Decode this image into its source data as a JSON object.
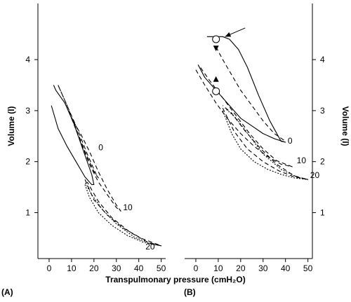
{
  "chart_data": [
    {
      "type": "line",
      "panel_label": "(A)",
      "xlabel": "Transpulmonary pressure (cmH₂O)",
      "ylabel": "Volume (l)",
      "xlim": [
        -5,
        52
      ],
      "ylim": [
        5.1,
        0.1
      ],
      "x_ticks": [
        "0",
        "10",
        "20",
        "30",
        "40",
        "50"
      ],
      "y_ticks": [
        "1",
        "2",
        "3",
        "4"
      ],
      "y_axis_side": "left",
      "series": [
        {
          "name": "0",
          "style": "solid",
          "label_at": [
            22,
            2.22
          ],
          "x": [
            1,
            4,
            8,
            12,
            16,
            19,
            20,
            19,
            15,
            11,
            7,
            3,
            2
          ],
          "y": [
            3.1,
            2.65,
            2.3,
            2.0,
            1.7,
            1.55,
            1.55,
            1.75,
            2.25,
            2.75,
            3.15,
            3.4,
            3.5
          ]
        },
        {
          "name": "0",
          "style": "dashed",
          "x": [
            4,
            8,
            12,
            16,
            20,
            22,
            21,
            17,
            13,
            8,
            4
          ],
          "y": [
            3.5,
            3.1,
            2.65,
            2.2,
            1.8,
            1.68,
            1.75,
            2.15,
            2.6,
            3.1,
            3.5
          ]
        },
        {
          "name": "10",
          "style": "dashed",
          "label_at": [
            33,
            1.05
          ],
          "x": [
            10,
            14,
            18,
            22,
            26,
            30,
            32,
            30,
            26,
            22,
            18,
            14,
            10
          ],
          "y": [
            2.85,
            2.4,
            1.95,
            1.6,
            1.35,
            1.1,
            1.03,
            1.15,
            1.45,
            1.8,
            2.2,
            2.55,
            2.85
          ]
        },
        {
          "name": "20",
          "style": "dotted",
          "label_at": [
            43,
            0.28
          ],
          "x": [
            16,
            18,
            22,
            28,
            35,
            42,
            50,
            46,
            38,
            30,
            24,
            19,
            16
          ],
          "y": [
            1.55,
            1.3,
            1.0,
            0.75,
            0.55,
            0.42,
            0.35,
            0.38,
            0.52,
            0.78,
            1.05,
            1.35,
            1.6
          ]
        },
        {
          "name": "20",
          "style": "dashed",
          "x": [
            16,
            20,
            26,
            33,
            41,
            50,
            44,
            36,
            28,
            22,
            17
          ],
          "y": [
            1.65,
            1.25,
            0.95,
            0.7,
            0.5,
            0.35,
            0.42,
            0.62,
            0.9,
            1.22,
            1.6
          ]
        }
      ]
    },
    {
      "type": "line",
      "panel_label": "(B)",
      "xlabel": "Transpulmonary pressure (cmH₂O)",
      "ylabel": "Volume (l)",
      "xlim": [
        -5,
        52
      ],
      "ylim": [
        5.1,
        0.1
      ],
      "x_ticks": [
        "0",
        "10",
        "20",
        "30",
        "40",
        "50"
      ],
      "y_ticks": [
        "1",
        "2",
        "3",
        "4"
      ],
      "y_axis_side": "right",
      "series": [
        {
          "name": "0",
          "style": "solid",
          "label_at": [
            41,
            2.35
          ],
          "x": [
            1,
            4,
            8,
            12,
            16,
            20,
            25,
            30,
            35,
            40,
            38,
            33,
            28,
            23,
            19,
            15,
            12,
            9,
            7,
            5
          ],
          "y": [
            3.9,
            3.65,
            3.45,
            3.25,
            3.05,
            2.85,
            2.7,
            2.55,
            2.45,
            2.38,
            2.4,
            2.8,
            3.3,
            3.85,
            4.2,
            4.4,
            4.45,
            4.45,
            4.45,
            4.45
          ]
        },
        {
          "name": "0",
          "style": "dashed",
          "x": [
            9,
            12,
            16,
            20,
            25,
            30,
            35,
            40
          ],
          "y": [
            4.25,
            4.0,
            3.7,
            3.4,
            3.1,
            2.8,
            2.55,
            2.4
          ]
        },
        {
          "name": "10",
          "style": "dashed",
          "label_at": [
            45,
            1.97
          ],
          "x": [
            0,
            4,
            9,
            14,
            20,
            26,
            32,
            38,
            43,
            36,
            30,
            24,
            18,
            12,
            6,
            2
          ],
          "y": [
            3.8,
            3.5,
            3.15,
            2.85,
            2.55,
            2.3,
            2.1,
            1.95,
            1.9,
            2.02,
            2.25,
            2.55,
            2.9,
            3.25,
            3.6,
            3.85
          ]
        },
        {
          "name": "20",
          "style": "dotted",
          "label_at": [
            51,
            1.68
          ],
          "x": [
            12,
            16,
            20,
            26,
            32,
            38,
            44,
            50,
            45,
            38,
            30,
            24,
            18,
            13
          ],
          "y": [
            3.0,
            2.55,
            2.25,
            2.0,
            1.85,
            1.75,
            1.68,
            1.65,
            1.7,
            1.85,
            2.15,
            2.5,
            2.85,
            3.05
          ]
        },
        {
          "name": "20",
          "style": "dashed",
          "x": [
            12,
            17,
            23,
            30,
            37,
            44,
            50,
            44,
            36,
            29,
            22,
            16,
            12
          ],
          "y": [
            3.05,
            2.6,
            2.25,
            2.0,
            1.82,
            1.7,
            1.65,
            1.72,
            1.95,
            2.25,
            2.6,
            2.95,
            3.1
          ]
        }
      ],
      "markers": [
        {
          "type": "open-circle",
          "x": 9,
          "y": 3.38
        },
        {
          "type": "open-circle",
          "x": 9,
          "y": 4.4
        },
        {
          "type": "triangle-up",
          "x": 9,
          "y": 3.62
        },
        {
          "type": "triangle-down",
          "x": 9,
          "y": 4.22
        }
      ],
      "arrows": [
        {
          "from": [
            22,
            4.62
          ],
          "to": [
            13,
            4.45
          ]
        }
      ]
    }
  ]
}
